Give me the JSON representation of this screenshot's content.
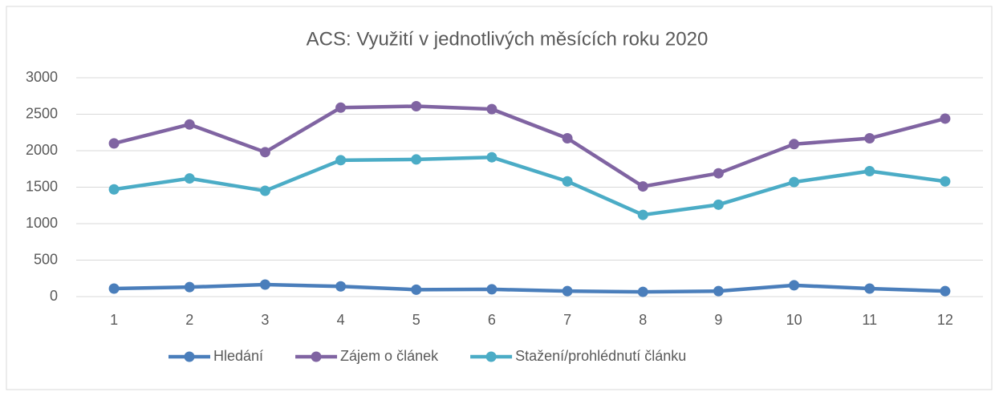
{
  "chart_data": {
    "type": "line",
    "title": "ACS: Využití v jednotlivých měsících roku 2020",
    "categories": [
      "1",
      "2",
      "3",
      "4",
      "5",
      "6",
      "7",
      "8",
      "9",
      "10",
      "11",
      "12"
    ],
    "series": [
      {
        "name": "Hledání",
        "color": "#4a7ebb",
        "values": [
          110,
          130,
          165,
          140,
          95,
          100,
          75,
          65,
          75,
          155,
          110,
          75
        ]
      },
      {
        "name": "Zájem o článek",
        "color": "#8064a2",
        "values": [
          2100,
          2360,
          1980,
          2590,
          2610,
          2570,
          2170,
          1510,
          1690,
          2090,
          2170,
          2440
        ]
      },
      {
        "name": "Stažení/prohlédnutí článku",
        "color": "#4bacc6",
        "values": [
          1470,
          1620,
          1450,
          1870,
          1880,
          1910,
          1580,
          1120,
          1260,
          1570,
          1720,
          1580
        ]
      }
    ],
    "ylim": [
      0,
      3000
    ],
    "yticks": [
      0,
      500,
      1000,
      1500,
      2000,
      2500,
      3000
    ],
    "grid": true,
    "legend": "bottom"
  }
}
